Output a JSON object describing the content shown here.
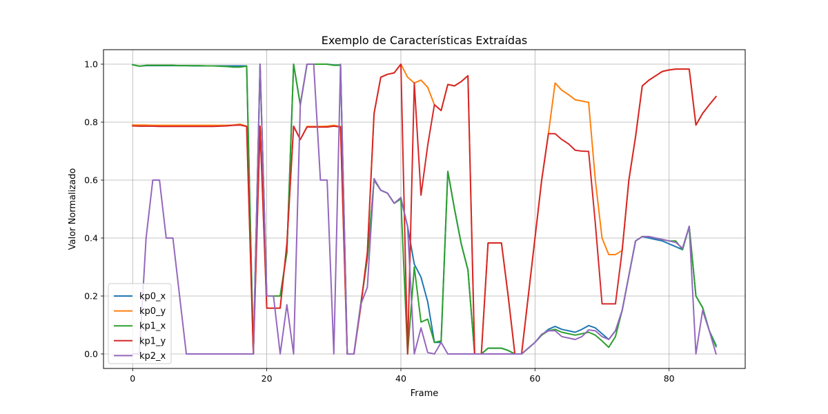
{
  "chart_data": {
    "type": "line",
    "title": "Exemplo de Características Extraídas",
    "xlabel": "Frame",
    "ylabel": "Valor Normalizado",
    "xlim": [
      -4.35,
      91.35
    ],
    "ylim": [
      -0.05,
      1.05
    ],
    "xticks": [
      0,
      20,
      40,
      60,
      80
    ],
    "yticks": [
      0.0,
      0.2,
      0.4,
      0.6,
      0.8,
      1.0
    ],
    "grid": true,
    "legend_position": "lower-left",
    "x": [
      0,
      1,
      2,
      3,
      4,
      5,
      6,
      7,
      8,
      9,
      10,
      11,
      12,
      13,
      14,
      15,
      16,
      17,
      18,
      19,
      20,
      21,
      22,
      23,
      24,
      25,
      26,
      27,
      28,
      29,
      30,
      31,
      32,
      33,
      34,
      35,
      36,
      37,
      38,
      39,
      40,
      41,
      42,
      43,
      44,
      45,
      46,
      47,
      48,
      49,
      50,
      51,
      52,
      53,
      54,
      55,
      56,
      57,
      58,
      59,
      60,
      61,
      62,
      63,
      64,
      65,
      66,
      67,
      68,
      69,
      70,
      71,
      72,
      73,
      74,
      75,
      76,
      77,
      78,
      79,
      80,
      81,
      82,
      83,
      84,
      85,
      86,
      87
    ],
    "series": [
      {
        "name": "kp0_x",
        "color": "#1f77b4",
        "values": [
          0.998,
          0.993,
          0.995,
          0.995,
          0.995,
          0.995,
          0.995,
          0.995,
          0.995,
          0.994,
          0.994,
          0.994,
          0.994,
          0.994,
          0.994,
          0.994,
          0.994,
          0.994,
          0,
          1.0,
          0.2,
          0.2,
          0.2,
          0.35,
          1.0,
          0.86,
          1.0,
          1.0,
          1.0,
          1.0,
          0.997,
          0.997,
          0,
          0,
          0.17,
          0.33,
          0.6,
          0.565,
          0.555,
          0.52,
          0.535,
          0.44,
          0.31,
          0.265,
          0.18,
          0.04,
          0.04,
          0.63,
          0.5,
          0.38,
          0.29,
          0,
          0,
          0.02,
          0.02,
          0.02,
          0.012,
          0,
          0,
          0.02,
          0.04,
          0.065,
          0.085,
          0.095,
          0.085,
          0.08,
          0.075,
          0.085,
          0.098,
          0.09,
          0.07,
          0.05,
          0.08,
          0.15,
          0.27,
          0.39,
          0.405,
          0.4,
          0.395,
          0.39,
          0.38,
          0.37,
          0.36,
          0.44,
          0.2,
          0.16,
          0.08,
          0.03
        ]
      },
      {
        "name": "kp0_y",
        "color": "#ff7f0e",
        "values": [
          0.79,
          0.79,
          0.79,
          0.789,
          0.789,
          0.789,
          0.789,
          0.789,
          0.789,
          0.789,
          0.789,
          0.789,
          0.789,
          0.789,
          0.789,
          0.79,
          0.793,
          0.786,
          0,
          0.786,
          0.158,
          0.158,
          0.158,
          0.38,
          0.786,
          0.74,
          0.785,
          0.785,
          0.785,
          0.786,
          0.789,
          0.785,
          0,
          0,
          0.16,
          0.35,
          0.83,
          0.955,
          0.965,
          0.97,
          1.0,
          0.955,
          0.935,
          0.945,
          0.92,
          0.86,
          0.84,
          0.93,
          0.925,
          0.94,
          0.96,
          0,
          0,
          0.383,
          0.383,
          0.383,
          0.2,
          0,
          0,
          0.2,
          0.4,
          0.6,
          0.76,
          0.935,
          0.91,
          0.895,
          0.877,
          0.873,
          0.868,
          0.6,
          0.4,
          0.343,
          0.343,
          0.357,
          0.6,
          0.75,
          0.925,
          0.945,
          0.96,
          0.975,
          0.98,
          0.983,
          0.983,
          0.983,
          0.79,
          0.83,
          0.86,
          0.888
        ]
      },
      {
        "name": "kp1_x",
        "color": "#2ca02c",
        "values": [
          0.998,
          0.993,
          0.996,
          0.996,
          0.996,
          0.996,
          0.996,
          0.995,
          0.995,
          0.995,
          0.995,
          0.994,
          0.994,
          0.993,
          0.992,
          0.99,
          0.99,
          0.993,
          0,
          1.0,
          0.2,
          0.2,
          0.2,
          0.35,
          1.0,
          0.86,
          1.0,
          1.0,
          1.0,
          1.0,
          0.996,
          0.996,
          0,
          0,
          0.17,
          0.33,
          0.6,
          0.565,
          0.555,
          0.52,
          0.535,
          0,
          0.3,
          0.11,
          0.12,
          0.04,
          0.045,
          0.63,
          0.5,
          0.38,
          0.29,
          0,
          0,
          0.02,
          0.02,
          0.02,
          0.012,
          0,
          0,
          0.02,
          0.04,
          0.065,
          0.08,
          0.085,
          0.075,
          0.07,
          0.065,
          0.07,
          0.075,
          0.065,
          0.045,
          0.023,
          0.06,
          0.15,
          0.27,
          0.39,
          0.405,
          0.405,
          0.4,
          0.395,
          0.39,
          0.39,
          0.36,
          0.44,
          0.2,
          0.16,
          0.08,
          0.025
        ]
      },
      {
        "name": "kp1_y",
        "color": "#d62728",
        "values": [
          0.787,
          0.786,
          0.786,
          0.786,
          0.785,
          0.785,
          0.785,
          0.785,
          0.785,
          0.785,
          0.785,
          0.785,
          0.785,
          0.786,
          0.787,
          0.789,
          0.79,
          0.785,
          0,
          0.786,
          0.158,
          0.158,
          0.158,
          0.38,
          0.786,
          0.74,
          0.783,
          0.783,
          0.783,
          0.783,
          0.786,
          0.783,
          0,
          0,
          0.16,
          0.35,
          0.83,
          0.955,
          0.965,
          0.97,
          1.0,
          0,
          0.935,
          0.548,
          0.72,
          0.86,
          0.84,
          0.93,
          0.925,
          0.94,
          0.96,
          0,
          0,
          0.383,
          0.383,
          0.383,
          0.2,
          0,
          0,
          0.2,
          0.4,
          0.6,
          0.76,
          0.76,
          0.74,
          0.725,
          0.703,
          0.7,
          0.699,
          0.45,
          0.173,
          0.173,
          0.173,
          0.357,
          0.6,
          0.75,
          0.925,
          0.945,
          0.96,
          0.975,
          0.98,
          0.983,
          0.983,
          0.983,
          0.79,
          0.83,
          0.86,
          0.888
        ]
      },
      {
        "name": "kp2_x",
        "color": "#9467bd",
        "values": [
          0,
          0,
          0.4,
          0.6,
          0.6,
          0.4,
          0.4,
          0.2,
          0,
          0,
          0,
          0,
          0,
          0,
          0,
          0,
          0,
          0,
          0,
          1.0,
          0.2,
          0.2,
          0,
          0.17,
          0,
          0.86,
          1.0,
          1.0,
          0.6,
          0.6,
          0,
          1.0,
          0,
          0,
          0.17,
          0.23,
          0.605,
          0.565,
          0.555,
          0.52,
          0.54,
          0.44,
          0,
          0.09,
          0.005,
          0,
          0.04,
          0,
          0,
          0,
          0,
          0,
          0,
          0,
          0,
          0,
          0,
          0,
          0,
          0.02,
          0.04,
          0.068,
          0.08,
          0.08,
          0.06,
          0.055,
          0.05,
          0.06,
          0.083,
          0.08,
          0.06,
          0.05,
          0.08,
          0.15,
          0.27,
          0.39,
          0.405,
          0.405,
          0.4,
          0.395,
          0.39,
          0.385,
          0.365,
          0.44,
          0,
          0.15,
          0.08,
          0
        ]
      }
    ]
  }
}
